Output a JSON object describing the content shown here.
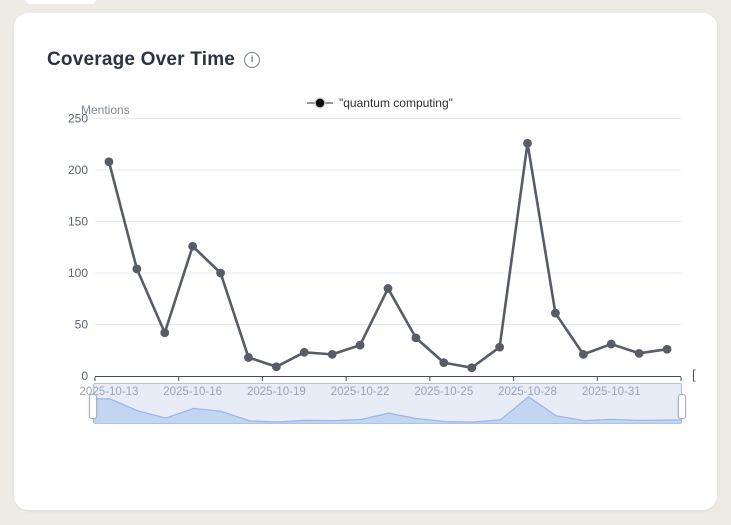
{
  "page": {
    "background_color": "#edebe4",
    "card_color": "#ffffff"
  },
  "card": {
    "title": "Coverage Over Time",
    "info_glyph": "i"
  },
  "legend": {
    "items": [
      {
        "label": "\"quantum computing\"",
        "marker": "line-dot-marker"
      }
    ]
  },
  "decorations": {
    "right_edge_glyph": "["
  },
  "chart_data": {
    "type": "line",
    "title": "Coverage Over Time",
    "xlabel": "",
    "ylabel": "Mentions",
    "series": [
      {
        "name": "\"quantum computing\"",
        "x": [
          "2025-10-13",
          "2025-10-14",
          "2025-10-15",
          "2025-10-16",
          "2025-10-17",
          "2025-10-18",
          "2025-10-19",
          "2025-10-20",
          "2025-10-21",
          "2025-10-22",
          "2025-10-23",
          "2025-10-24",
          "2025-10-25",
          "2025-10-26",
          "2025-10-27",
          "2025-10-28",
          "2025-10-29",
          "2025-10-30",
          "2025-10-31",
          "2025-11-01",
          "2025-11-02"
        ],
        "values": [
          208,
          104,
          42,
          126,
          100,
          18,
          9,
          23,
          21,
          30,
          85,
          37,
          13,
          8,
          28,
          226,
          61,
          21,
          31,
          22,
          26
        ]
      }
    ],
    "x_tick_labels": [
      "2025-10-13",
      "2025-10-16",
      "2025-10-19",
      "2025-10-22",
      "2025-10-25",
      "2025-10-28",
      "2025-10-31"
    ],
    "y_ticks": [
      0,
      50,
      100,
      150,
      200,
      250
    ],
    "ylim": [
      0,
      250
    ],
    "grid": true,
    "legend_position": "top-center",
    "has_datazoom_brush": true,
    "colors": {
      "line": "#575c66",
      "point": "#575c66",
      "grid": "#e3e9f3",
      "axis": "#474d57",
      "x_tick_label": "#9aa0ab",
      "y_tick_label": "#5b6472",
      "legend_line": "#999999",
      "legend_dot": "#0a0a0a",
      "mini_line": "#9cb8e7",
      "mini_fill": "rgba(152,186,240,0.45)",
      "brush_fill": "rgba(151,170,217,0.22)",
      "brush_border": "#a7b8e2"
    }
  }
}
